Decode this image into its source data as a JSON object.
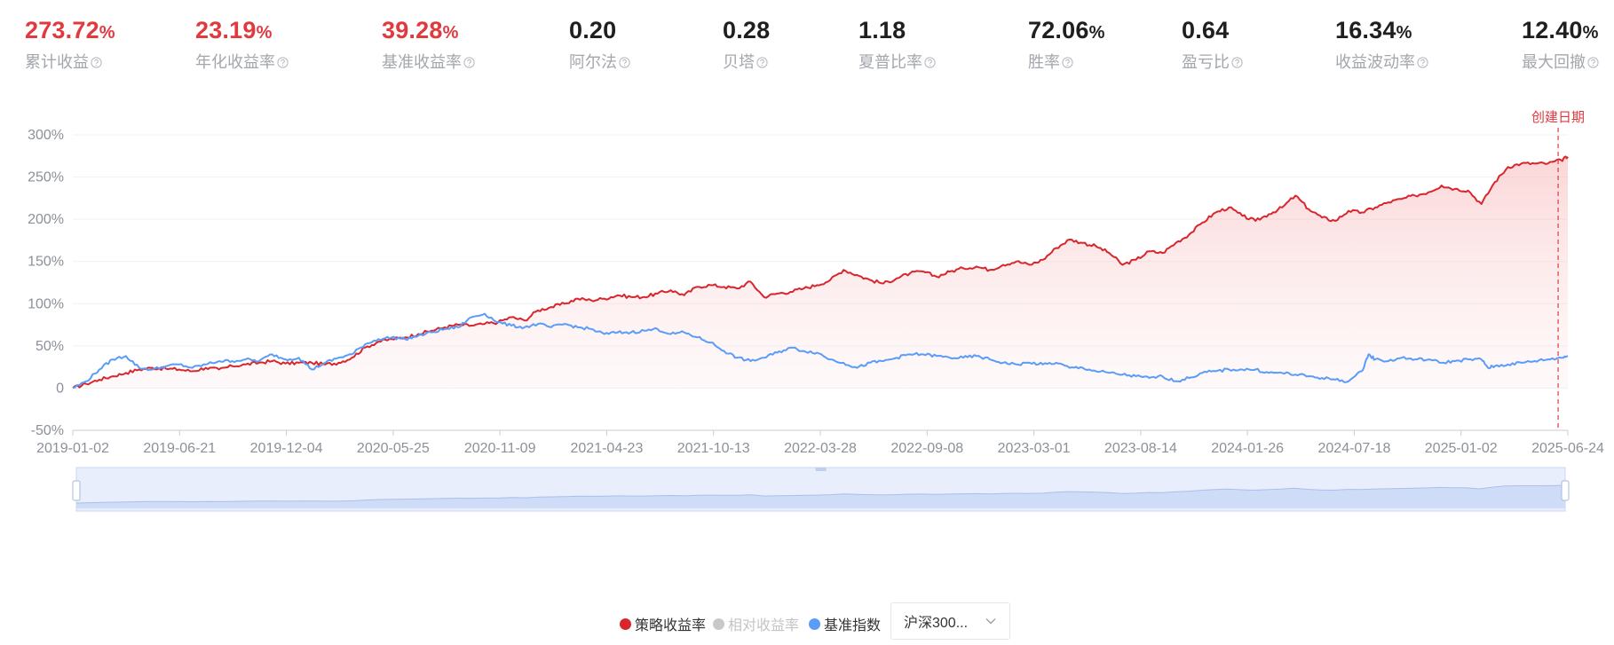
{
  "metrics": [
    {
      "value": "273.72",
      "unit": "%",
      "label": "累计收益",
      "color": "#e0393e"
    },
    {
      "value": "23.19",
      "unit": "%",
      "label": "年化收益率",
      "color": "#e0393e"
    },
    {
      "value": "39.28",
      "unit": "%",
      "label": "基准收益率",
      "color": "#e0393e"
    },
    {
      "value": "0.20",
      "unit": "",
      "label": "阿尔法",
      "color": "#1f1f1f"
    },
    {
      "value": "0.28",
      "unit": "",
      "label": "贝塔",
      "color": "#1f1f1f"
    },
    {
      "value": "1.18",
      "unit": "",
      "label": "夏普比率",
      "color": "#1f1f1f"
    },
    {
      "value": "72.06",
      "unit": "%",
      "label": "胜率",
      "color": "#1f1f1f"
    },
    {
      "value": "0.64",
      "unit": "",
      "label": "盈亏比",
      "color": "#1f1f1f"
    },
    {
      "value": "16.34",
      "unit": "%",
      "label": "收益波动率",
      "color": "#1f1f1f"
    },
    {
      "value": "12.40",
      "unit": "%",
      "label": "最大回撤",
      "color": "#1f1f1f"
    }
  ],
  "chart_data": {
    "type": "line",
    "y_ticks": [
      "300%",
      "250%",
      "200%",
      "150%",
      "100%",
      "50%",
      "0",
      "-50%"
    ],
    "ylim": [
      -50,
      300
    ],
    "x_ticks": [
      "2019-01-02",
      "2019-06-21",
      "2019-12-04",
      "2020-05-25",
      "2020-11-09",
      "2021-04-23",
      "2021-10-13",
      "2022-03-28",
      "2022-09-08",
      "2023-03-01",
      "2023-08-14",
      "2024-01-26",
      "2024-07-18",
      "2025-01-02",
      "2025-06-24"
    ],
    "grid": true,
    "marker": {
      "label": "创建日期",
      "at": 0.9935,
      "color": "#e0393e"
    },
    "series": [
      {
        "name": "策略收益率",
        "color": "#d9262c",
        "fill": "area",
        "points": [
          [
            0,
            0
          ],
          [
            2,
            5
          ],
          [
            4,
            10
          ],
          [
            6,
            14
          ],
          [
            8,
            18
          ],
          [
            10,
            22
          ],
          [
            12,
            24
          ],
          [
            14,
            23
          ],
          [
            16,
            22
          ],
          [
            18,
            20
          ],
          [
            20,
            24
          ],
          [
            22,
            22
          ],
          [
            24,
            26
          ],
          [
            26,
            28
          ],
          [
            28,
            30
          ],
          [
            30,
            32
          ],
          [
            32,
            29
          ],
          [
            34,
            30
          ],
          [
            36,
            30
          ],
          [
            38,
            28
          ],
          [
            40,
            30
          ],
          [
            42,
            36
          ],
          [
            44,
            48
          ],
          [
            46,
            55
          ],
          [
            48,
            58
          ],
          [
            50,
            60
          ],
          [
            52,
            64
          ],
          [
            54,
            68
          ],
          [
            56,
            72
          ],
          [
            58,
            75
          ],
          [
            60,
            74
          ],
          [
            62,
            76
          ],
          [
            64,
            78
          ],
          [
            66,
            84
          ],
          [
            68,
            80
          ],
          [
            70,
            92
          ],
          [
            72,
            96
          ],
          [
            74,
            100
          ],
          [
            76,
            106
          ],
          [
            78,
            104
          ],
          [
            80,
            106
          ],
          [
            82,
            110
          ],
          [
            84,
            108
          ],
          [
            86,
            108
          ],
          [
            88,
            112
          ],
          [
            90,
            116
          ],
          [
            92,
            110
          ],
          [
            94,
            120
          ],
          [
            96,
            122
          ],
          [
            98,
            120
          ],
          [
            100,
            118
          ],
          [
            102,
            126
          ],
          [
            104,
            108
          ],
          [
            106,
            112
          ],
          [
            108,
            114
          ],
          [
            110,
            118
          ],
          [
            112,
            122
          ],
          [
            114,
            128
          ],
          [
            116,
            140
          ],
          [
            118,
            134
          ],
          [
            120,
            128
          ],
          [
            122,
            124
          ],
          [
            124,
            130
          ],
          [
            126,
            136
          ],
          [
            128,
            138
          ],
          [
            130,
            132
          ],
          [
            132,
            138
          ],
          [
            134,
            142
          ],
          [
            136,
            144
          ],
          [
            138,
            140
          ],
          [
            140,
            146
          ],
          [
            142,
            150
          ],
          [
            144,
            146
          ],
          [
            146,
            152
          ],
          [
            148,
            166
          ],
          [
            150,
            176
          ],
          [
            152,
            172
          ],
          [
            154,
            168
          ],
          [
            156,
            160
          ],
          [
            158,
            146
          ],
          [
            160,
            152
          ],
          [
            162,
            162
          ],
          [
            164,
            160
          ],
          [
            166,
            172
          ],
          [
            168,
            182
          ],
          [
            170,
            196
          ],
          [
            172,
            208
          ],
          [
            174,
            214
          ],
          [
            176,
            204
          ],
          [
            178,
            198
          ],
          [
            180,
            206
          ],
          [
            182,
            214
          ],
          [
            184,
            228
          ],
          [
            186,
            212
          ],
          [
            188,
            202
          ],
          [
            190,
            198
          ],
          [
            192,
            210
          ],
          [
            194,
            208
          ],
          [
            196,
            214
          ],
          [
            198,
            220
          ],
          [
            200,
            224
          ],
          [
            202,
            228
          ],
          [
            204,
            232
          ],
          [
            206,
            240
          ],
          [
            208,
            236
          ],
          [
            210,
            234
          ],
          [
            212,
            218
          ],
          [
            214,
            244
          ],
          [
            216,
            262
          ],
          [
            218,
            266
          ],
          [
            220,
            266
          ],
          [
            222,
            266
          ],
          [
            224,
            270
          ],
          [
            225,
            274
          ]
        ]
      },
      {
        "name": "相对收益率",
        "color": "#c4c4c4",
        "visible": false
      },
      {
        "name": "基准指数",
        "color": "#5a9cf8",
        "fill": "none",
        "points": [
          [
            0,
            0
          ],
          [
            2,
            8
          ],
          [
            4,
            22
          ],
          [
            6,
            34
          ],
          [
            8,
            38
          ],
          [
            10,
            24
          ],
          [
            12,
            22
          ],
          [
            14,
            26
          ],
          [
            16,
            28
          ],
          [
            18,
            24
          ],
          [
            20,
            28
          ],
          [
            22,
            32
          ],
          [
            24,
            32
          ],
          [
            26,
            34
          ],
          [
            28,
            32
          ],
          [
            30,
            40
          ],
          [
            32,
            34
          ],
          [
            34,
            36
          ],
          [
            36,
            22
          ],
          [
            38,
            30
          ],
          [
            40,
            36
          ],
          [
            42,
            40
          ],
          [
            44,
            52
          ],
          [
            46,
            58
          ],
          [
            48,
            60
          ],
          [
            50,
            58
          ],
          [
            52,
            62
          ],
          [
            54,
            66
          ],
          [
            56,
            70
          ],
          [
            58,
            72
          ],
          [
            60,
            84
          ],
          [
            62,
            88
          ],
          [
            64,
            78
          ],
          [
            66,
            74
          ],
          [
            68,
            72
          ],
          [
            70,
            76
          ],
          [
            72,
            72
          ],
          [
            74,
            76
          ],
          [
            76,
            72
          ],
          [
            78,
            70
          ],
          [
            80,
            64
          ],
          [
            82,
            66
          ],
          [
            84,
            66
          ],
          [
            86,
            68
          ],
          [
            88,
            70
          ],
          [
            90,
            64
          ],
          [
            92,
            66
          ],
          [
            94,
            60
          ],
          [
            96,
            54
          ],
          [
            98,
            44
          ],
          [
            100,
            36
          ],
          [
            102,
            32
          ],
          [
            104,
            36
          ],
          [
            106,
            42
          ],
          [
            108,
            48
          ],
          [
            110,
            44
          ],
          [
            112,
            42
          ],
          [
            114,
            34
          ],
          [
            116,
            30
          ],
          [
            118,
            24
          ],
          [
            120,
            30
          ],
          [
            122,
            32
          ],
          [
            124,
            36
          ],
          [
            126,
            40
          ],
          [
            128,
            40
          ],
          [
            130,
            38
          ],
          [
            132,
            36
          ],
          [
            134,
            36
          ],
          [
            136,
            38
          ],
          [
            138,
            34
          ],
          [
            140,
            30
          ],
          [
            142,
            28
          ],
          [
            144,
            30
          ],
          [
            146,
            28
          ],
          [
            148,
            30
          ],
          [
            150,
            24
          ],
          [
            152,
            24
          ],
          [
            154,
            20
          ],
          [
            156,
            18
          ],
          [
            158,
            16
          ],
          [
            160,
            14
          ],
          [
            162,
            12
          ],
          [
            164,
            14
          ],
          [
            166,
            8
          ],
          [
            168,
            12
          ],
          [
            170,
            18
          ],
          [
            172,
            20
          ],
          [
            174,
            22
          ],
          [
            176,
            22
          ],
          [
            178,
            22
          ],
          [
            180,
            18
          ],
          [
            182,
            18
          ],
          [
            184,
            16
          ],
          [
            186,
            14
          ],
          [
            188,
            12
          ],
          [
            190,
            10
          ],
          [
            192,
            8
          ],
          [
            194,
            20
          ],
          [
            195,
            40
          ],
          [
            196,
            34
          ],
          [
            198,
            32
          ],
          [
            200,
            36
          ],
          [
            202,
            34
          ],
          [
            204,
            34
          ],
          [
            206,
            30
          ],
          [
            208,
            32
          ],
          [
            210,
            34
          ],
          [
            212,
            34
          ],
          [
            213,
            24
          ],
          [
            214,
            26
          ],
          [
            216,
            28
          ],
          [
            218,
            30
          ],
          [
            220,
            32
          ],
          [
            222,
            34
          ],
          [
            224,
            36
          ],
          [
            225,
            38
          ]
        ]
      }
    ]
  },
  "legend": {
    "items": [
      {
        "label": "策略收益率",
        "color": "#d9262c",
        "active": true
      },
      {
        "label": "相对收益率",
        "color": "#c8c8c8",
        "active": false
      },
      {
        "label": "基准指数",
        "color": "#5a9cf8",
        "active": true
      }
    ],
    "select_value": "沪深300...",
    "chevron_icon": "chevron-down-icon"
  }
}
